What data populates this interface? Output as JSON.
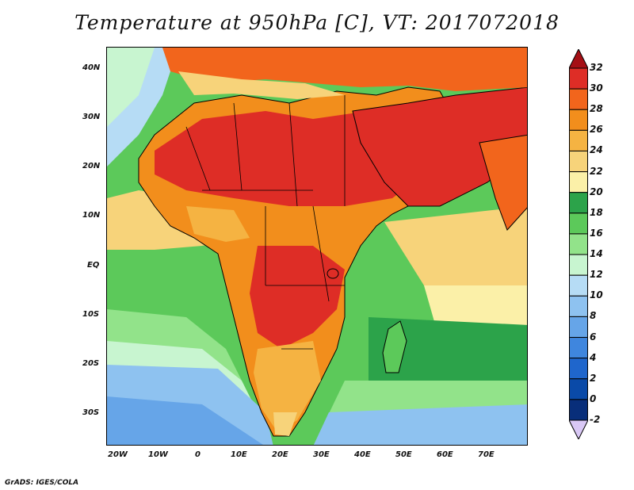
{
  "title": "Temperature at 950hPa [C], VT: 2017072018",
  "footer": "GrADS: IGES/COLA",
  "map": {
    "variable": "Temperature at 950hPa",
    "units": "C",
    "valid_time": "2017072018",
    "lat_labels": [
      "40N",
      "30N",
      "20N",
      "10N",
      "EQ",
      "10S",
      "20S",
      "30S"
    ],
    "lon_labels": [
      "20W",
      "10W",
      "0",
      "10E",
      "20E",
      "30E",
      "40E",
      "50E",
      "60E",
      "70E"
    ]
  },
  "colorbar": {
    "labels": [
      "32",
      "30",
      "28",
      "26",
      "24",
      "22",
      "20",
      "18",
      "16",
      "14",
      "12",
      "10",
      "8",
      "6",
      "4",
      "2",
      "0",
      "-2"
    ],
    "colors": [
      "#a50f15",
      "#de2d26",
      "#f2651c",
      "#f28e1c",
      "#f5b342",
      "#f7d37a",
      "#fbf0a8",
      "#2ca34a",
      "#5cc95a",
      "#92e38a",
      "#c8f5d0",
      "#b6dcf5",
      "#8ec2f0",
      "#66a5e8",
      "#3f86de",
      "#1f66cc",
      "#0a4aa8",
      "#082e7a",
      "#d9c8f5"
    ]
  }
}
